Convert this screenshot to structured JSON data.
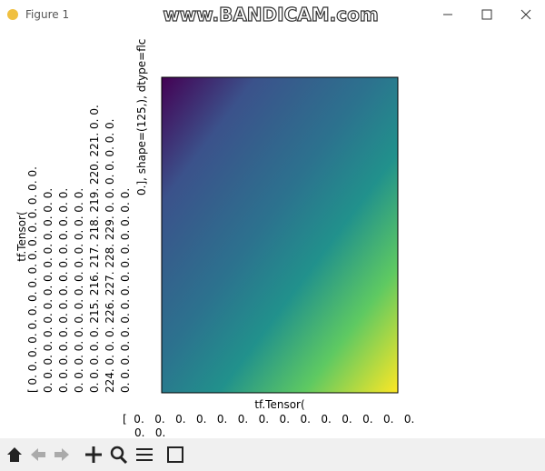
{
  "window": {
    "title": "Figure 1",
    "watermark": "www.BANDICAM.com"
  },
  "figure": {
    "xaxis": {
      "label": "tf.Tensor(",
      "tick_lines": [
        "[  0.   0.   0.   0.   0.   0.   0.   0.   0.   0.   0.   0.   0.   0.",
        "0.   0."
      ]
    },
    "yaxis": {
      "label": "tf.Tensor(",
      "tick_lines": [
        "[   0.   0.   0.   0.   0.   0.   0.   0.   0.   0.   0.   0.   0.   0.   0.   0.",
        "0.   0.   0.   0.   0.   0.   0.   0.   0.   0.   0.   0.   0.   0.   0.",
        "0.   0.   0.   0.   0.   0.   0.   0.   0.   0.   0.   0.   0.   0.   0.",
        "0.   0.   0.   0.   0.   0.   0.   0.   0.   0.   0.   0.   0.   0.   0.",
        "0.   0.   0.   0.   0.   215.  216.  217.  218.  219.  220.  221.   0.   0.",
        "224.   0.   0.   0.   226.  227.  228.  229.   0.   0.   0.   0.   0.   0.   0.",
        "0.   0.   0.   0.   0.   0.   0.   0.   0.   0.   0.   0.   0.   0.   0.",
        "0.], shape=(125,), dtype=flc"
      ]
    }
  }
}
